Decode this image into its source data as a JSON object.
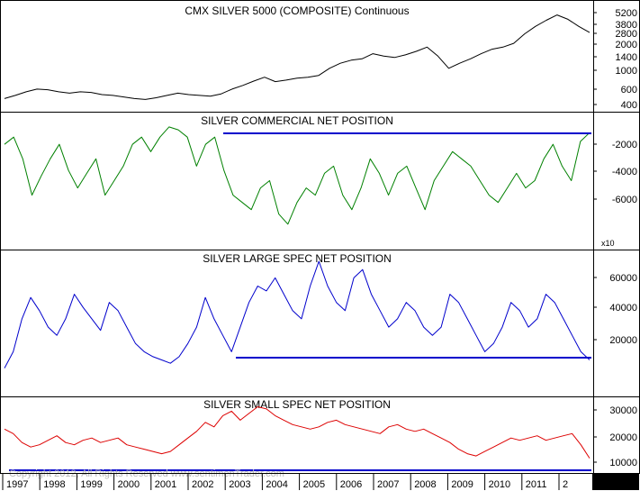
{
  "copyright": "Copyright 2012, All Rights Reserved  www.sentimenTrader.com",
  "x_axis": {
    "years": [
      "1997",
      "1998",
      "1999",
      "2000",
      "2001",
      "2002",
      "2003",
      "2004",
      "2005",
      "2006",
      "2007",
      "2008",
      "2009",
      "2010",
      "2011",
      "2"
    ]
  },
  "colors": {
    "price": "#000000",
    "commercial": "#008000",
    "large": "#0000cc",
    "small": "#dd0000",
    "ref_line": "#0000cc",
    "copyright": "#bbbbbb"
  },
  "chart_data": [
    {
      "type": "line",
      "title": "CMX SILVER 5000 (COMPOSITE) Continuous",
      "scale": "log",
      "tick_labels": [
        "5200",
        "3800",
        "2800",
        "2000",
        "1400",
        "1000",
        "600",
        "400"
      ],
      "ylim": [
        330,
        5600
      ],
      "series": [
        {
          "values": [
            430,
            470,
            520,
            560,
            550,
            520,
            500,
            520,
            510,
            480,
            470,
            450,
            430,
            420,
            440,
            470,
            500,
            480,
            470,
            460,
            490,
            560,
            620,
            700,
            780,
            690,
            720,
            760,
            780,
            820,
            1000,
            1150,
            1250,
            1300,
            1500,
            1400,
            1350,
            1450,
            1600,
            1800,
            1400,
            1000,
            1150,
            1300,
            1500,
            1700,
            1800,
            2000,
            2600,
            3200,
            3800,
            4400,
            3900,
            3200,
            2700
          ]
        }
      ]
    },
    {
      "type": "line",
      "title": "SILVER COMMERCIAL NET POSITION",
      "tick_labels": [
        "-2000",
        "-4000",
        "-6000"
      ],
      "multiplier_label": "x10",
      "ylim": [
        -9000,
        0
      ],
      "reference_line": -1000,
      "series": [
        {
          "values": [
            -2000,
            -1500,
            -3000,
            -5500,
            -4200,
            -3000,
            -2000,
            -3800,
            -5000,
            -4000,
            -3000,
            -5500,
            -4500,
            -3500,
            -2000,
            -1500,
            -2500,
            -1500,
            -800,
            -1000,
            -1500,
            -3500,
            -2000,
            -1500,
            -3800,
            -5500,
            -6000,
            -6500,
            -5000,
            -4500,
            -6800,
            -7500,
            -6000,
            -5000,
            -5500,
            -4000,
            -3500,
            -5500,
            -6500,
            -5000,
            -3000,
            -4000,
            -5500,
            -4000,
            -3500,
            -5000,
            -6500,
            -4500,
            -3500,
            -2500,
            -3000,
            -3500,
            -4500,
            -5500,
            -6000,
            -5000,
            -4000,
            -5000,
            -4500,
            -3000,
            -2000,
            -3500,
            -4500,
            -1800,
            -1200
          ]
        }
      ]
    },
    {
      "type": "line",
      "title": "SILVER LARGE SPEC NET POSITION",
      "tick_labels": [
        "60000",
        "40000",
        "20000"
      ],
      "ylim": [
        -10000,
        75000
      ],
      "reference_line": 8000,
      "series": [
        {
          "values": [
            5000,
            15000,
            35000,
            48000,
            40000,
            30000,
            25000,
            35000,
            50000,
            42000,
            35000,
            28000,
            45000,
            40000,
            30000,
            20000,
            15000,
            12000,
            10000,
            8000,
            12000,
            20000,
            30000,
            48000,
            35000,
            25000,
            15000,
            30000,
            45000,
            55000,
            52000,
            60000,
            50000,
            40000,
            35000,
            55000,
            70000,
            55000,
            45000,
            40000,
            60000,
            65000,
            50000,
            40000,
            30000,
            35000,
            45000,
            40000,
            30000,
            25000,
            30000,
            50000,
            45000,
            35000,
            25000,
            15000,
            20000,
            30000,
            45000,
            40000,
            30000,
            35000,
            50000,
            45000,
            35000,
            25000,
            15000,
            10000
          ]
        }
      ]
    },
    {
      "type": "line",
      "title": "SILVER SMALL SPEC NET POSITION",
      "tick_labels": [
        "30000",
        "20000",
        "10000"
      ],
      "ylim": [
        3000,
        34000
      ],
      "reference_line": 6500,
      "series": [
        {
          "values": [
            21000,
            19000,
            15000,
            13000,
            14000,
            16000,
            18000,
            15000,
            14000,
            16000,
            17000,
            15000,
            16000,
            17000,
            14000,
            13000,
            12000,
            11000,
            10000,
            11000,
            14000,
            17000,
            20000,
            24000,
            22000,
            27000,
            29000,
            25000,
            28000,
            31000,
            30000,
            27000,
            25000,
            23000,
            22000,
            21000,
            22000,
            24000,
            25000,
            23000,
            22000,
            21000,
            20000,
            19000,
            22000,
            23000,
            21000,
            20000,
            21000,
            19000,
            17000,
            15000,
            12000,
            10000,
            9000,
            11000,
            13000,
            15000,
            17000,
            16000,
            17000,
            18000,
            16000,
            17000,
            18000,
            19000,
            14000,
            8000
          ]
        }
      ]
    }
  ]
}
